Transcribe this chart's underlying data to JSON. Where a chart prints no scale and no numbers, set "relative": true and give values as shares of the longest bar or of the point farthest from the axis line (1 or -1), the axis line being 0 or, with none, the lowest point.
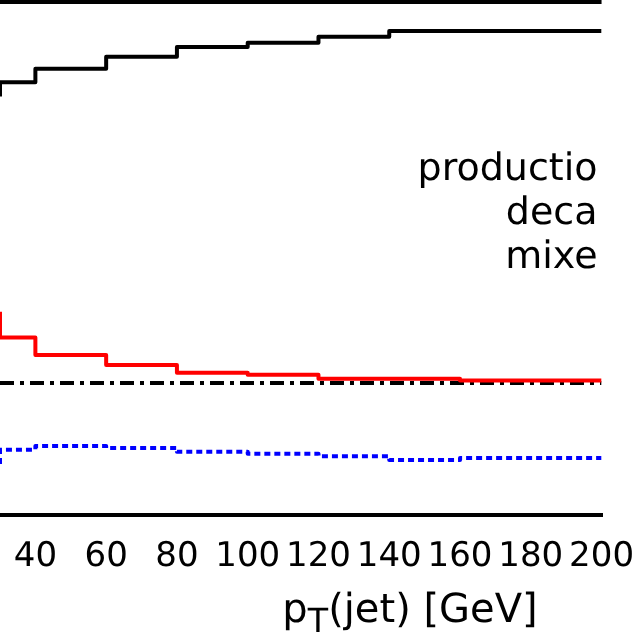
{
  "chart_data": {
    "type": "step",
    "relative": true,
    "xlabel": "p$_{T}$(jet) [GeV]",
    "x": [
      30,
      40,
      60,
      80,
      100,
      120,
      140,
      160,
      180,
      200
    ],
    "xlim": [
      30,
      200
    ],
    "xticks": [
      40,
      60,
      80,
      100,
      120,
      140,
      160,
      180,
      200
    ],
    "grid": false,
    "legend": false,
    "marker": "none",
    "annotations": [
      "productio",
      "deca",
      "mixe"
    ],
    "series": [
      {
        "color": "#000000",
        "line_style": "solid",
        "values": [
          0.865,
          0.894,
          0.922,
          0.947,
          0.967,
          0.976,
          0.988,
          1,
          1,
          1
        ]
      },
      {
        "color": "#ff0000",
        "line_style": "solid",
        "values": [
          0.42,
          0.367,
          0.331,
          0.31,
          0.294,
          0.29,
          0.282,
          0.282,
          0.278,
          0.278
        ]
      },
      {
        "color": "#000000",
        "line_style": "dashed",
        "values": [
          0.273,
          0.273,
          0.273,
          0.273,
          0.273,
          0.273,
          0.273,
          0.273,
          0.273,
          0.273
        ]
      },
      {
        "color": "#0000ff",
        "line_style": "dotted",
        "values": [
          0.106,
          0.135,
          0.143,
          0.139,
          0.131,
          0.127,
          0.122,
          0.114,
          0.118,
          0.118
        ]
      }
    ]
  }
}
